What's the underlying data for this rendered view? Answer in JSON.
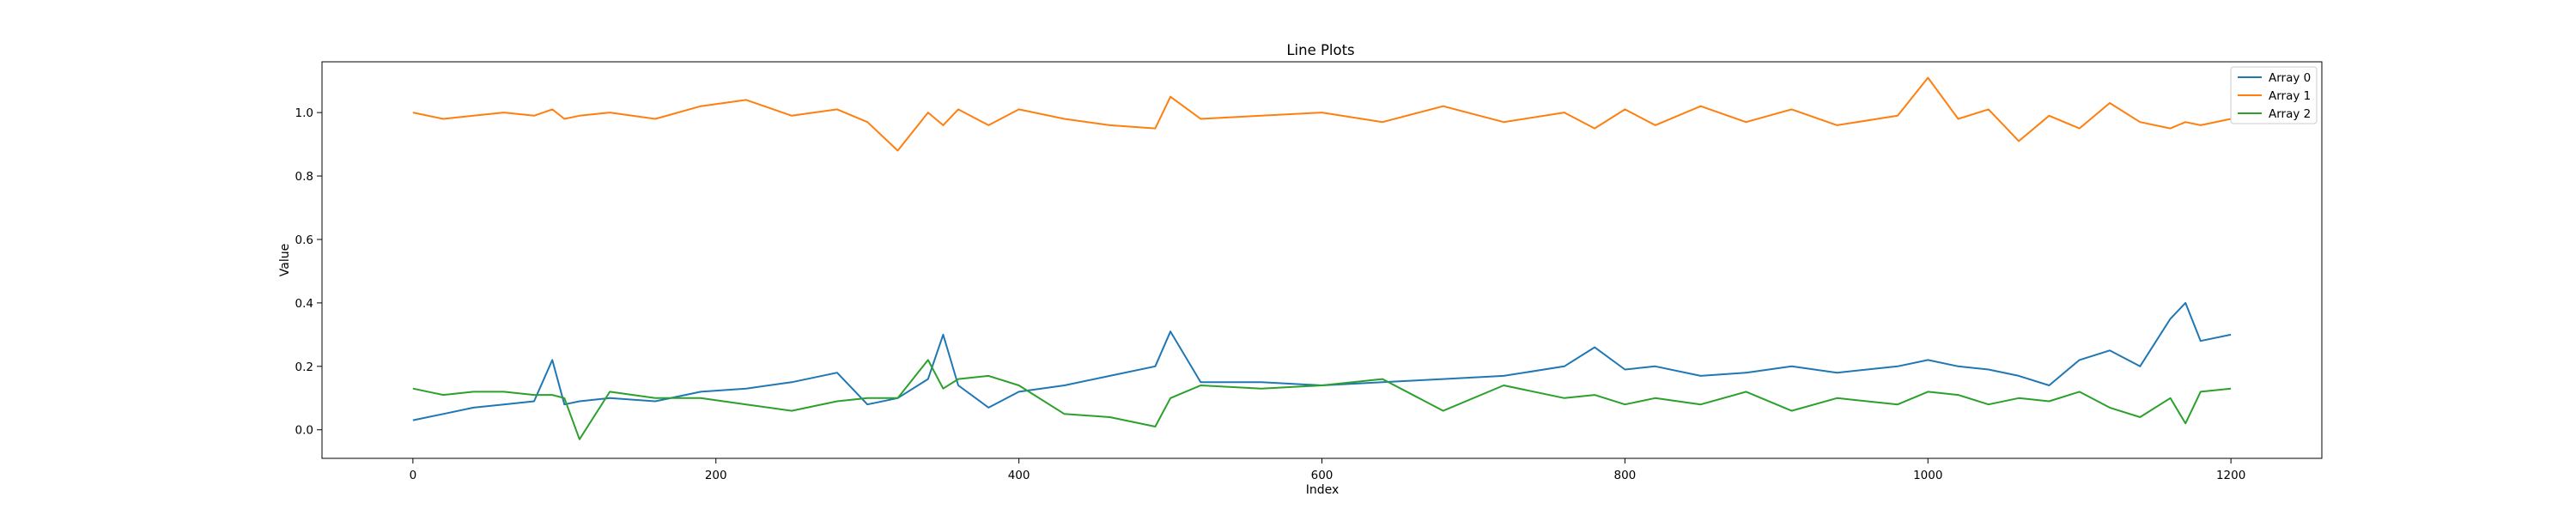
{
  "chart_data": {
    "type": "line",
    "title": "Line Plots",
    "xlabel": "Index",
    "ylabel": "Value",
    "xlim": [
      -60,
      1260
    ],
    "ylim": [
      -0.09,
      1.16
    ],
    "xticks": [
      0,
      200,
      400,
      600,
      800,
      1000,
      1200
    ],
    "yticks": [
      0.0,
      0.2,
      0.4,
      0.6,
      0.8,
      1.0
    ],
    "ytick_labels": [
      "0.0",
      "0.2",
      "0.4",
      "0.6",
      "0.8",
      "1.0"
    ],
    "grid": false,
    "legend_position": "top-right",
    "x": [
      0,
      20,
      40,
      60,
      80,
      92,
      100,
      110,
      130,
      160,
      190,
      220,
      250,
      280,
      300,
      320,
      340,
      350,
      360,
      380,
      400,
      430,
      460,
      490,
      500,
      520,
      560,
      600,
      640,
      680,
      720,
      760,
      780,
      800,
      820,
      850,
      880,
      910,
      940,
      980,
      1000,
      1020,
      1040,
      1060,
      1080,
      1100,
      1120,
      1140,
      1160,
      1170,
      1180,
      1200
    ],
    "series": [
      {
        "name": "Array 0",
        "color": "#1f77b4",
        "values": [
          0.03,
          0.05,
          0.07,
          0.08,
          0.09,
          0.22,
          0.08,
          0.09,
          0.1,
          0.09,
          0.12,
          0.13,
          0.15,
          0.18,
          0.08,
          0.1,
          0.16,
          0.3,
          0.14,
          0.07,
          0.12,
          0.14,
          0.17,
          0.2,
          0.31,
          0.15,
          0.15,
          0.14,
          0.15,
          0.16,
          0.17,
          0.2,
          0.26,
          0.19,
          0.2,
          0.17,
          0.18,
          0.2,
          0.18,
          0.2,
          0.22,
          0.2,
          0.19,
          0.17,
          0.14,
          0.22,
          0.25,
          0.2,
          0.35,
          0.4,
          0.28,
          0.3
        ]
      },
      {
        "name": "Array 1",
        "color": "#ff7f0e",
        "values": [
          1.0,
          0.98,
          0.99,
          1.0,
          0.99,
          1.01,
          0.98,
          0.99,
          1.0,
          0.98,
          1.02,
          1.04,
          0.99,
          1.01,
          0.97,
          0.88,
          1.0,
          0.96,
          1.01,
          0.96,
          1.01,
          0.98,
          0.96,
          0.95,
          1.05,
          0.98,
          0.99,
          1.0,
          0.97,
          1.02,
          0.97,
          1.0,
          0.95,
          1.01,
          0.96,
          1.02,
          0.97,
          1.01,
          0.96,
          0.99,
          1.11,
          0.98,
          1.01,
          0.91,
          0.99,
          0.95,
          1.03,
          0.97,
          0.95,
          0.97,
          0.96,
          0.98
        ]
      },
      {
        "name": "Array 2",
        "color": "#2ca02c",
        "values": [
          0.13,
          0.11,
          0.12,
          0.12,
          0.11,
          0.11,
          0.1,
          -0.03,
          0.12,
          0.1,
          0.1,
          0.08,
          0.06,
          0.09,
          0.1,
          0.1,
          0.22,
          0.13,
          0.16,
          0.17,
          0.14,
          0.05,
          0.04,
          0.01,
          0.1,
          0.14,
          0.13,
          0.14,
          0.16,
          0.06,
          0.14,
          0.1,
          0.11,
          0.08,
          0.1,
          0.08,
          0.12,
          0.06,
          0.1,
          0.08,
          0.12,
          0.11,
          0.08,
          0.1,
          0.09,
          0.12,
          0.07,
          0.04,
          0.1,
          0.02,
          0.12,
          0.13
        ]
      }
    ]
  }
}
